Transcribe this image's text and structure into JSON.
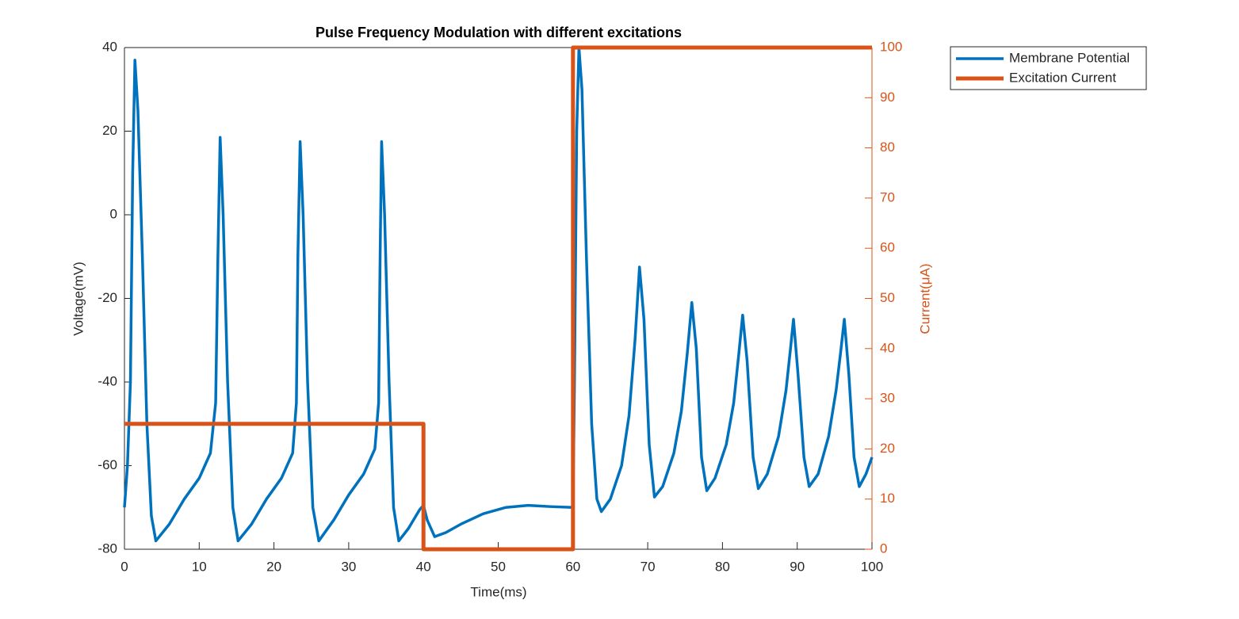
{
  "chart_data": {
    "type": "line",
    "title": "Pulse Frequency Modulation with different excitations",
    "xlabel": "Time(ms)",
    "ylabel": "Voltage(mV)",
    "y2label": "Current(μA)",
    "xlim": [
      0,
      100
    ],
    "xticks": [
      0,
      10,
      20,
      30,
      40,
      50,
      60,
      70,
      80,
      90,
      100
    ],
    "ylim": [
      -80,
      40
    ],
    "yticks": [
      -80,
      -60,
      -40,
      -20,
      0,
      20,
      40
    ],
    "y2lim": [
      0,
      100
    ],
    "y2ticks": [
      0,
      10,
      20,
      30,
      40,
      50,
      60,
      70,
      80,
      90,
      100
    ],
    "y2color": "#D95319",
    "legend": "outside-top-right",
    "series": [
      {
        "name": "Membrane Potential",
        "color": "#0072BD",
        "axis": "y",
        "x": [
          0,
          0.4,
          0.8,
          1.1,
          1.4,
          1.8,
          2.4,
          3.0,
          3.6,
          4.2,
          6,
          8,
          10,
          11.5,
          12.2,
          12.5,
          12.8,
          13.2,
          13.8,
          14.5,
          15.2,
          17,
          19,
          21,
          22.5,
          23.0,
          23.2,
          23.5,
          23.9,
          24.5,
          25.2,
          26,
          28,
          30,
          32,
          33.5,
          34.0,
          34.2,
          34.4,
          34.8,
          35.4,
          36.0,
          36.7,
          38,
          39.5,
          40,
          40.5,
          41.5,
          43,
          45,
          48,
          51,
          54,
          57,
          60,
          60.2,
          60.5,
          60.8,
          61.2,
          61.8,
          62.5,
          63.2,
          63.8,
          65,
          66.5,
          67.5,
          68.3,
          68.9,
          69.5,
          70.2,
          70.9,
          72,
          73.5,
          74.5,
          75.3,
          75.9,
          76.5,
          77.2,
          77.9,
          79,
          80.5,
          81.5,
          82.2,
          82.7,
          83.3,
          84.1,
          84.8,
          86,
          87.5,
          88.5,
          89.1,
          89.5,
          90.1,
          90.9,
          91.6,
          92.8,
          94.2,
          95.2,
          95.8,
          96.3,
          96.9,
          97.6,
          98.3,
          99.2,
          100
        ],
        "values": [
          -70,
          -60,
          -40,
          10,
          37,
          25,
          -10,
          -50,
          -72,
          -78,
          -74,
          -68,
          -63,
          -57,
          -45,
          -10,
          18.5,
          0,
          -40,
          -70,
          -78,
          -74,
          -68,
          -63,
          -57,
          -45,
          -10,
          17.5,
          0,
          -40,
          -70,
          -78,
          -73,
          -67,
          -62,
          -56,
          -45,
          -10,
          17.5,
          0,
          -40,
          -70,
          -78,
          -75,
          -70.5,
          -69.5,
          -73,
          -77,
          -76,
          -74,
          -71.5,
          -70,
          -69.5,
          -69.8,
          -70,
          -40,
          20,
          40,
          30,
          -10,
          -50,
          -68,
          -71,
          -68,
          -60,
          -48,
          -30,
          -12.5,
          -25,
          -55,
          -67.5,
          -65,
          -57,
          -47,
          -33,
          -21,
          -32,
          -58,
          -66,
          -63,
          -55,
          -45,
          -33,
          -24,
          -35,
          -58,
          -65.5,
          -62,
          -53,
          -42,
          -32,
          -25,
          -38,
          -58,
          -65,
          -62,
          -53,
          -42,
          -33,
          -25,
          -38,
          -58,
          -65,
          -62,
          -58
        ]
      },
      {
        "name": "Excitation Current",
        "color": "#D95319",
        "axis": "y2",
        "x": [
          0,
          40,
          40,
          60,
          60,
          100
        ],
        "values": [
          25,
          25,
          0,
          0,
          100,
          100
        ]
      }
    ]
  }
}
